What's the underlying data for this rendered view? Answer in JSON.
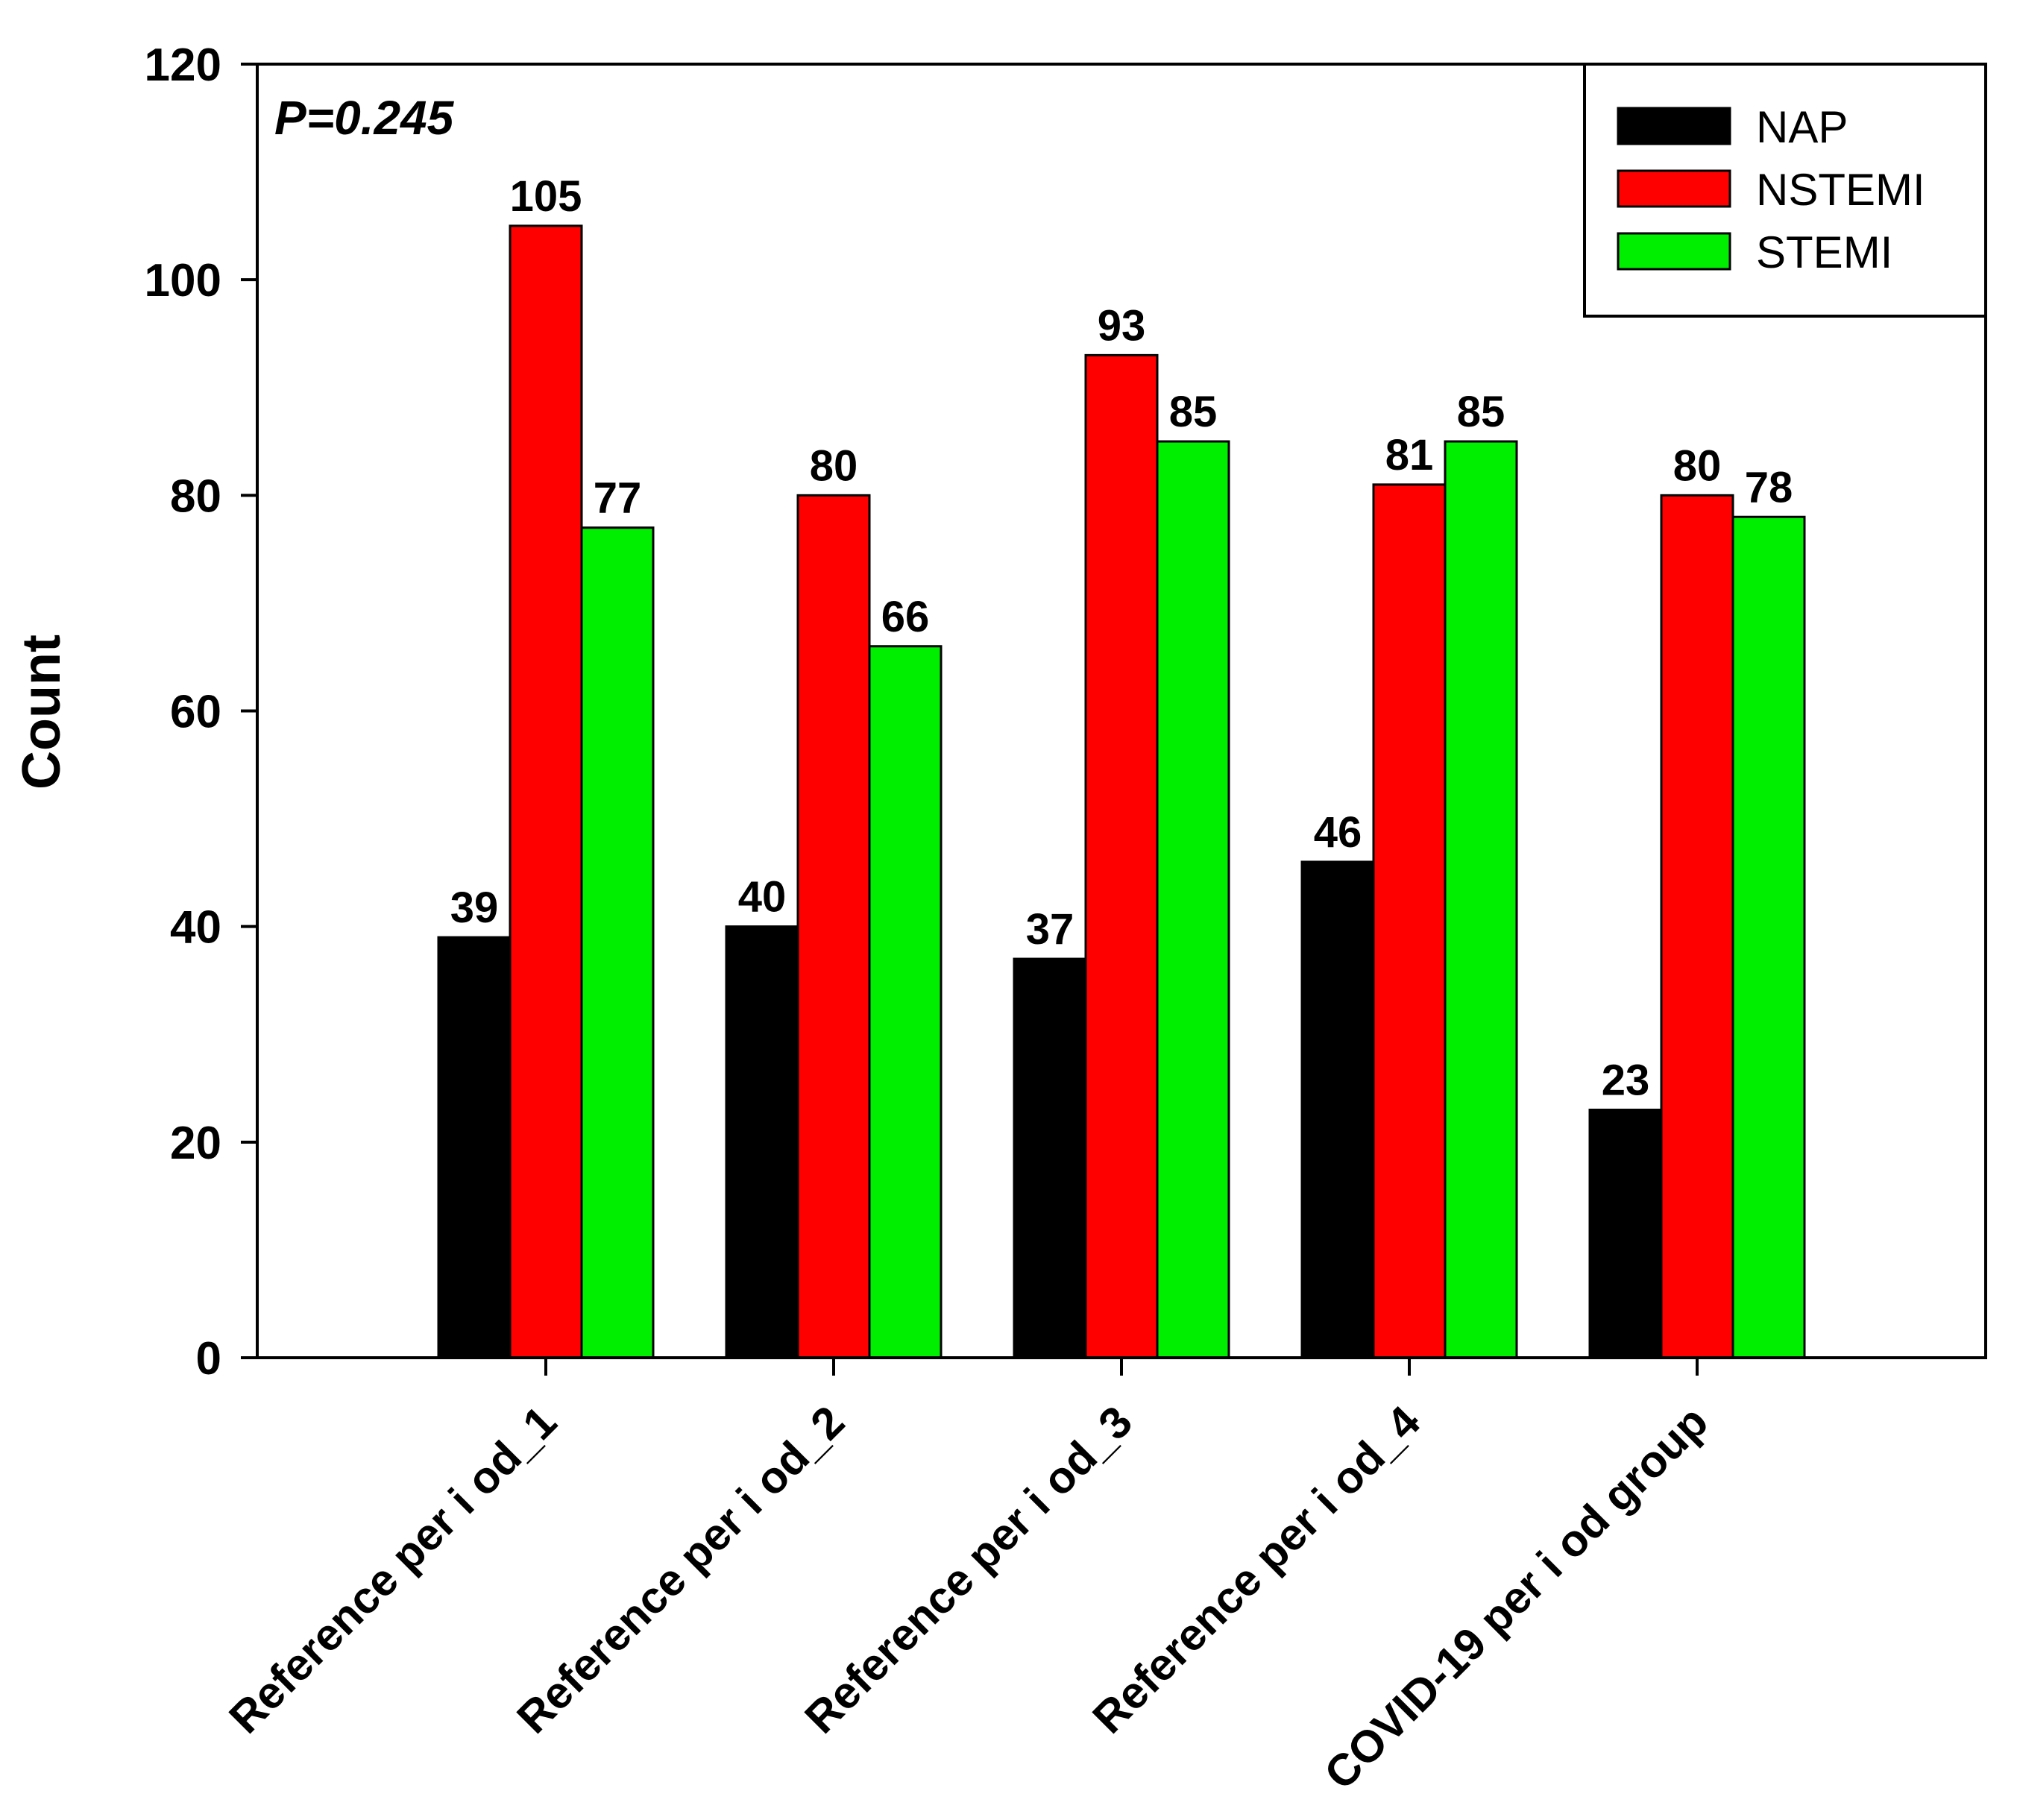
{
  "chart_data": {
    "type": "bar",
    "title": "",
    "annotation": "P=0.245",
    "xlabel": "",
    "ylabel": "Count",
    "categories": [
      "Reference period_1",
      "Reference period_2",
      "Reference period_3",
      "Reference period_4",
      "COVID-19 period group"
    ],
    "category_labels": [
      "Reference per i od_1",
      "Reference per i od_2",
      "Reference per i od_3",
      "Reference per i od_4",
      "COVID-19 per i od group"
    ],
    "series": [
      {
        "name": "NAP",
        "color": "#000000",
        "values": [
          39,
          40,
          37,
          46,
          23
        ]
      },
      {
        "name": "NSTEMI",
        "color": "#ff0000",
        "values": [
          105,
          80,
          93,
          81,
          80
        ]
      },
      {
        "name": "STEMI",
        "color": "#00ee00",
        "values": [
          77,
          66,
          85,
          85,
          78
        ]
      }
    ],
    "ylim": [
      0,
      120
    ],
    "yticks": [
      0,
      20,
      40,
      60,
      80,
      100,
      120
    ],
    "grid": false,
    "legend_position": "top-right",
    "data_labels": true
  }
}
